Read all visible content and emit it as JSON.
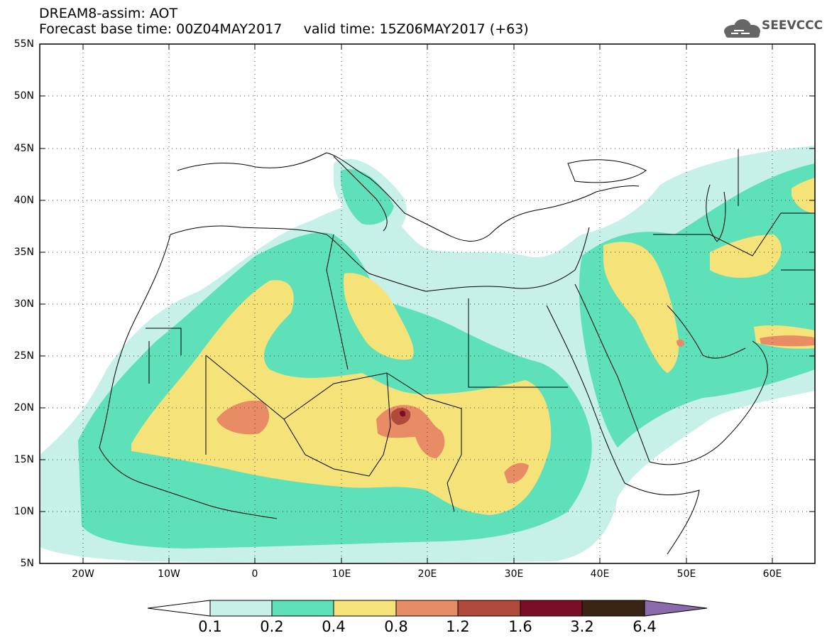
{
  "header": {
    "line1": "DREAM8-assim: AOT",
    "line2_base": "Forecast base time: 00Z04MAY2017",
    "line2_valid": "valid time: 15Z06MAY2017 (+63)"
  },
  "logo": {
    "text": "SEEVCCC",
    "icon": "cloud-icon"
  },
  "axes": {
    "lat_labels": [
      "55N",
      "50N",
      "45N",
      "40N",
      "35N",
      "30N",
      "25N",
      "20N",
      "15N",
      "10N",
      "5N"
    ],
    "lon_labels": [
      "20W",
      "10W",
      "0",
      "10E",
      "20E",
      "30E",
      "40E",
      "50E",
      "60E"
    ],
    "lat_range": [
      5,
      55
    ],
    "lon_range": [
      -25,
      65
    ]
  },
  "colorbar": {
    "labels": [
      "0.1",
      "0.2",
      "0.4",
      "0.8",
      "1.2",
      "1.6",
      "3.2",
      "6.4"
    ],
    "colors": [
      "#ffffff",
      "#c6f0e8",
      "#5ee0b8",
      "#f5e37a",
      "#e88c66",
      "#b24a3c",
      "#7a0d28",
      "#3a2414",
      "#8a6aaa"
    ]
  }
}
